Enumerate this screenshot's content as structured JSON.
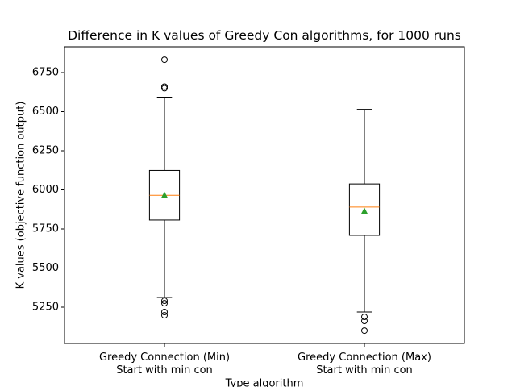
{
  "chart_data": {
    "type": "box",
    "title": "Difference in K values of Greedy Con algorithms, for 1000 runs",
    "x_label": "Type algorithm",
    "y_label": "K values (objective function output)",
    "categories": [
      "Greedy Connection (Min)\nStart with min con",
      "Greedy Connection (Max)\nStart with min con"
    ],
    "boxes": [
      {
        "whisker_low": 5312,
        "q1": 5807,
        "median": 5965,
        "q3": 6124,
        "whisker_high": 6593,
        "mean": 5968,
        "fliers": [
          6832,
          6660,
          6650,
          5291,
          5275,
          5219,
          5198
        ]
      },
      {
        "whisker_low": 5219,
        "q1": 5709,
        "median": 5890,
        "q3": 6038,
        "whisker_high": 6515,
        "mean": 5866,
        "fliers": [
          5188,
          5162,
          5100
        ]
      }
    ],
    "median_color": "#ff7f0e",
    "mean_color": "#2ca02c",
    "ylim": [
      5018,
      6915
    ],
    "yticks": [
      5250,
      5500,
      5750,
      6000,
      6250,
      6500,
      6750
    ]
  }
}
